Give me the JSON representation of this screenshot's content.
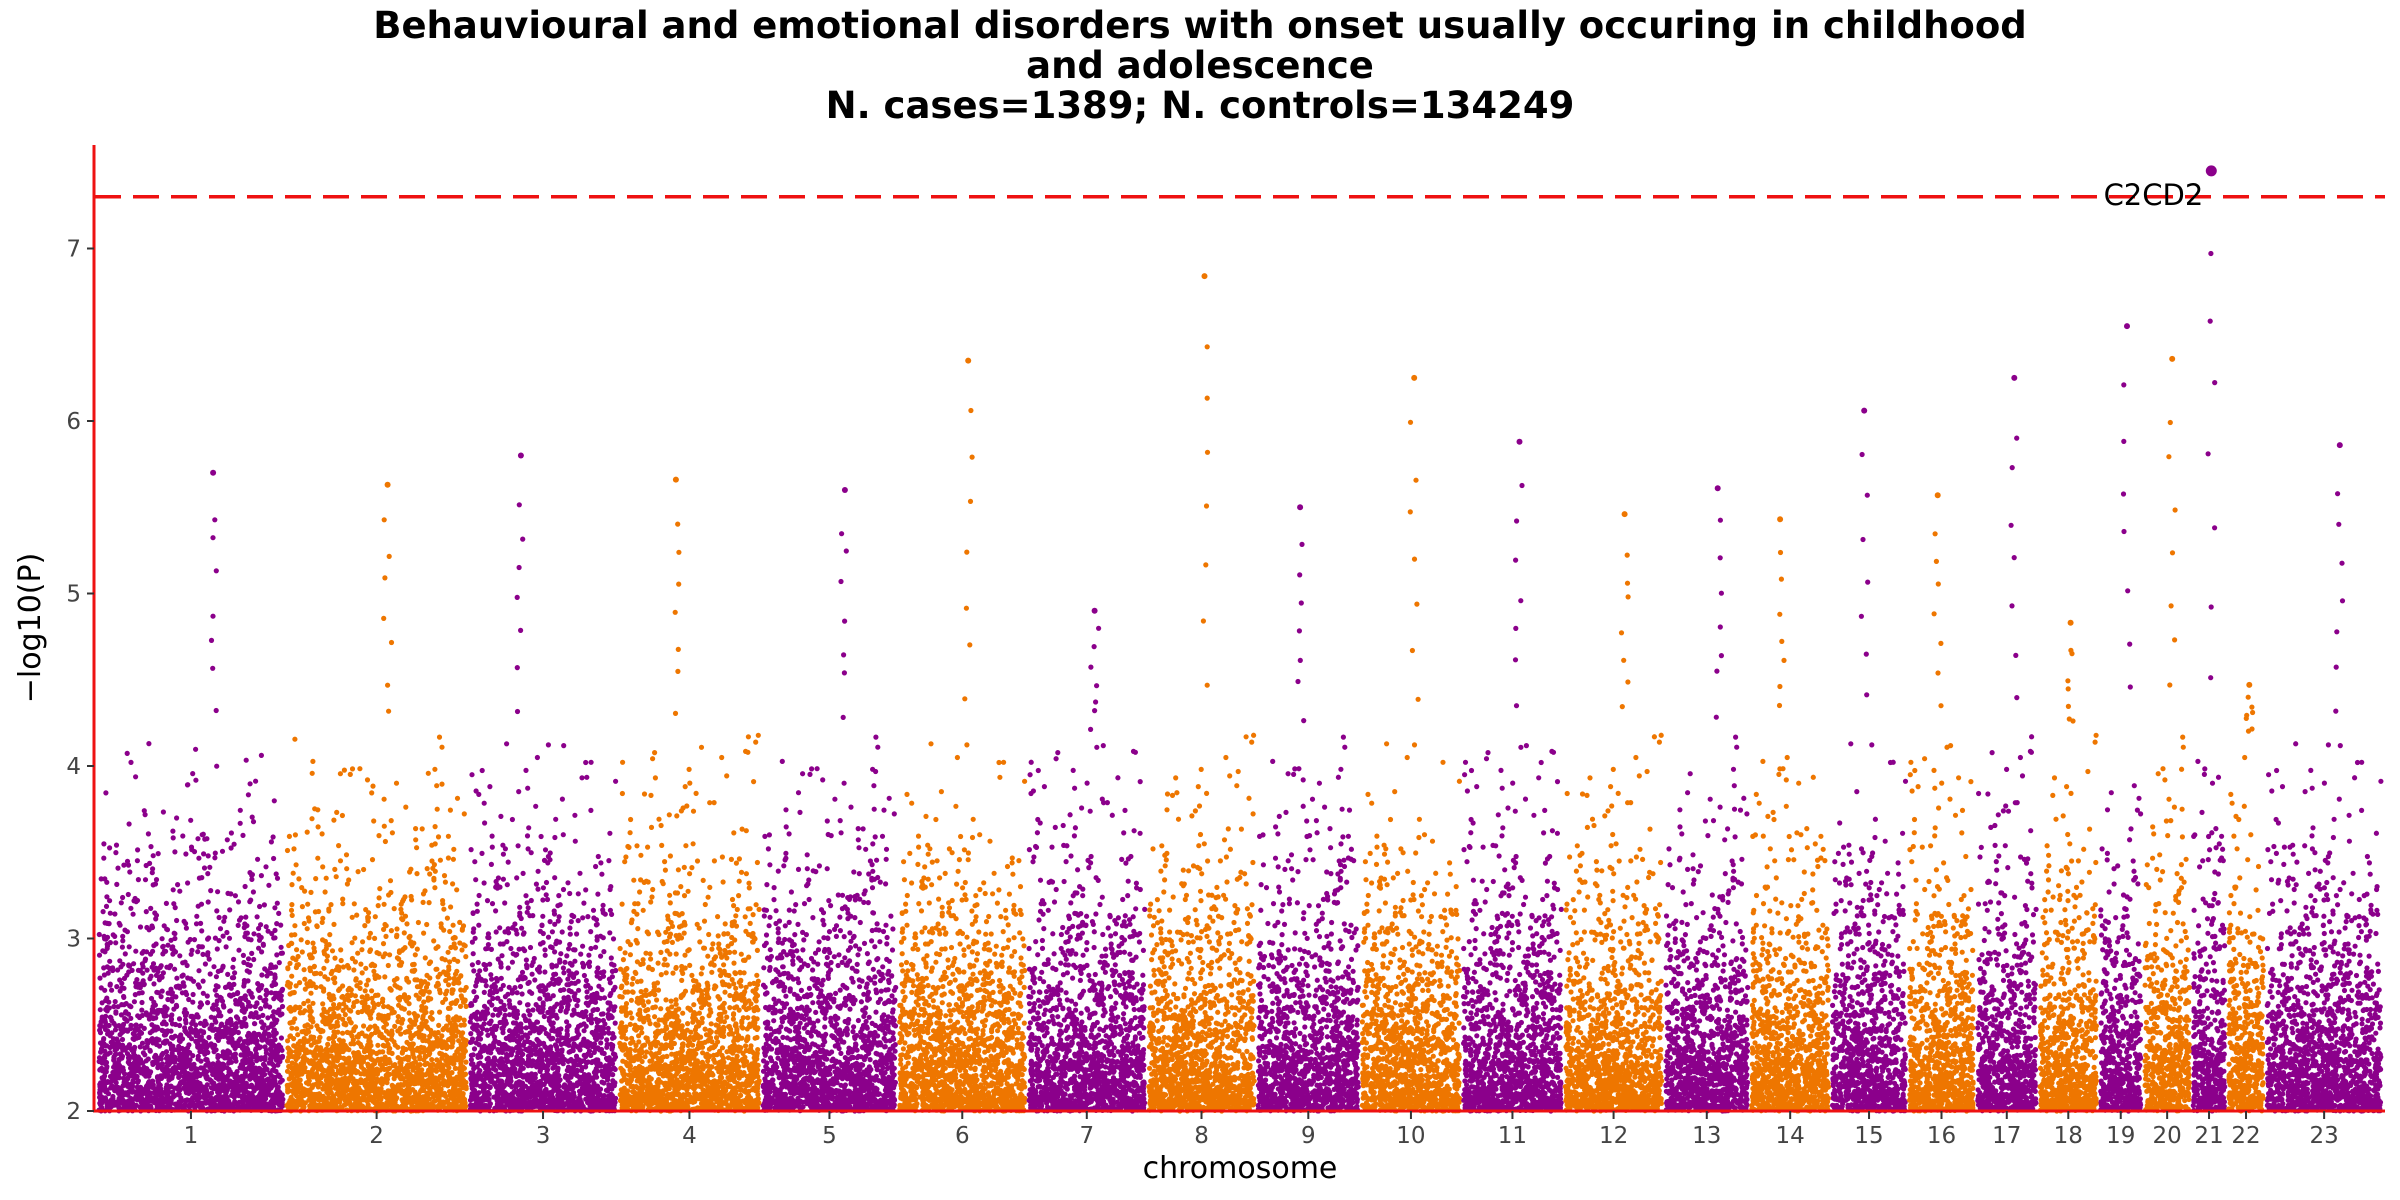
{
  "title_lines": [
    "Behauvioural and emotional disorders with onset usually occuring in childhood",
    "and adolescence",
    "N. cases=1389; N. controls=134249"
  ],
  "colors": {
    "odd": "#8B008B",
    "even": "#EE7600",
    "threshold": "#EE1111",
    "axis": "#EE1111"
  },
  "chart_data": {
    "type": "scatter",
    "subtype": "manhattan",
    "title": "Behauvioural and emotional disorders with onset usually occuring in childhood and adolescence\nN. cases=1389; N. controls=134249",
    "xlabel": "chromosome",
    "ylabel": "−log10(P)",
    "ylim": [
      2,
      7.6
    ],
    "yticks": [
      2,
      3,
      4,
      5,
      6,
      7
    ],
    "grid": false,
    "legend": "none",
    "threshold": 7.3,
    "chromosomes": [
      {
        "label": "1",
        "length": 249
      },
      {
        "label": "2",
        "length": 243
      },
      {
        "label": "3",
        "length": 198
      },
      {
        "label": "4",
        "length": 190
      },
      {
        "label": "5",
        "length": 181
      },
      {
        "label": "6",
        "length": 171
      },
      {
        "label": "7",
        "length": 159
      },
      {
        "label": "8",
        "length": 145
      },
      {
        "label": "9",
        "length": 138
      },
      {
        "label": "10",
        "length": 134
      },
      {
        "label": "11",
        "length": 135
      },
      {
        "label": "12",
        "length": 133
      },
      {
        "label": "13",
        "length": 114
      },
      {
        "label": "14",
        "length": 107
      },
      {
        "label": "15",
        "length": 102
      },
      {
        "label": "16",
        "length": 90
      },
      {
        "label": "17",
        "length": 83
      },
      {
        "label": "18",
        "length": 80
      },
      {
        "label": "19",
        "length": 59
      },
      {
        "label": "20",
        "length": 64
      },
      {
        "label": "21",
        "length": 47
      },
      {
        "label": "22",
        "length": 51
      },
      {
        "label": "23",
        "length": 156
      }
    ],
    "top_hits": [
      {
        "chr": "1",
        "y": 5.7
      },
      {
        "chr": "2",
        "y": 5.63
      },
      {
        "chr": "3",
        "y": 5.8
      },
      {
        "chr": "4",
        "y": 5.66
      },
      {
        "chr": "5",
        "y": 5.6
      },
      {
        "chr": "6",
        "y": 6.35
      },
      {
        "chr": "7",
        "y": 4.9
      },
      {
        "chr": "8",
        "y": 6.84
      },
      {
        "chr": "9",
        "y": 5.5
      },
      {
        "chr": "10",
        "y": 6.25
      },
      {
        "chr": "11",
        "y": 5.88
      },
      {
        "chr": "12",
        "y": 5.46
      },
      {
        "chr": "13",
        "y": 5.61
      },
      {
        "chr": "14",
        "y": 5.43
      },
      {
        "chr": "15",
        "y": 6.06
      },
      {
        "chr": "16",
        "y": 5.57
      },
      {
        "chr": "17",
        "y": 6.25
      },
      {
        "chr": "18",
        "y": 4.83
      },
      {
        "chr": "19",
        "y": 6.55
      },
      {
        "chr": "20",
        "y": 6.36
      },
      {
        "chr": "21",
        "y": 7.45
      },
      {
        "chr": "22",
        "y": 4.47
      },
      {
        "chr": "23",
        "y": 5.86
      }
    ],
    "annotations": [
      {
        "label": "C2CD2",
        "chr": "21",
        "y": 7.45
      }
    ]
  }
}
